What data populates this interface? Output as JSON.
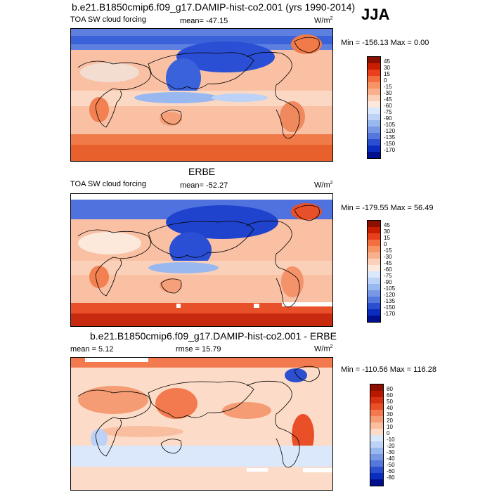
{
  "season": "JJA",
  "panels": [
    {
      "id": "model",
      "title": "b.e21.B1850cmip6.f09_g17.DAMIP-hist-co2.001 (yrs 1990-2014)",
      "left_label": "TOA SW cloud forcing",
      "center_label": "mean= -47.15",
      "units": "W/m",
      "units_sup": "2",
      "minmax": "Min = -156.13 Max =   0.00",
      "colorbar_labels": [
        "45",
        "30",
        "15",
        "0",
        "-15",
        "-30",
        "-45",
        "-60",
        "-75",
        "-90",
        "-105",
        "-120",
        "-135",
        "-150",
        "-170"
      ],
      "colorbar_colors": [
        "#8b1000",
        "#c81e00",
        "#e8401a",
        "#f2703f",
        "#f69465",
        "#f8b08c",
        "#fbd0b8",
        "#fde8dc",
        "#dbe8fb",
        "#bcd2f6",
        "#9ab8f0",
        "#7898e6",
        "#5478dc",
        "#2c4fd0",
        "#0a2cbf",
        "#00108c"
      ]
    },
    {
      "id": "obs",
      "title": "ERBE",
      "left_label": "TOA SW cloud forcing",
      "center_label": "mean= -52.27",
      "units": "W/m",
      "units_sup": "2",
      "minmax": "Min = -179.55 Max =  56.49",
      "colorbar_labels": [
        "45",
        "30",
        "15",
        "0",
        "-15",
        "-30",
        "-45",
        "-60",
        "-75",
        "-90",
        "-105",
        "-120",
        "-135",
        "-150",
        "-170"
      ],
      "colorbar_colors": [
        "#8b1000",
        "#c81e00",
        "#e8401a",
        "#f2703f",
        "#f69465",
        "#f8b08c",
        "#fbd0b8",
        "#fde8dc",
        "#dbe8fb",
        "#bcd2f6",
        "#9ab8f0",
        "#7898e6",
        "#5478dc",
        "#2c4fd0",
        "#0a2cbf",
        "#00108c"
      ]
    },
    {
      "id": "diff",
      "title": "b.e21.B1850cmip6.f09_g17.DAMIP-hist-co2.001 - ERBE",
      "left_label": "mean =   5.12",
      "center_label": "rmse =  15.79",
      "units": "W/m",
      "units_sup": "2",
      "minmax": "Min = -110.56 Max = 116.28",
      "colorbar_labels": [
        "80",
        "60",
        "50",
        "40",
        "30",
        "20",
        "10",
        "0",
        "-10",
        "-20",
        "-30",
        "-40",
        "-50",
        "-60",
        "-80"
      ],
      "colorbar_colors": [
        "#8b1000",
        "#b81800",
        "#d83010",
        "#ea5028",
        "#f27a4e",
        "#f59c74",
        "#f9bea0",
        "#fcdcc8",
        "#dbe8fb",
        "#bcd2f6",
        "#9ab8f0",
        "#7898e6",
        "#5478dc",
        "#2c4fd0",
        "#0a2cbf",
        "#00108c"
      ]
    }
  ]
}
